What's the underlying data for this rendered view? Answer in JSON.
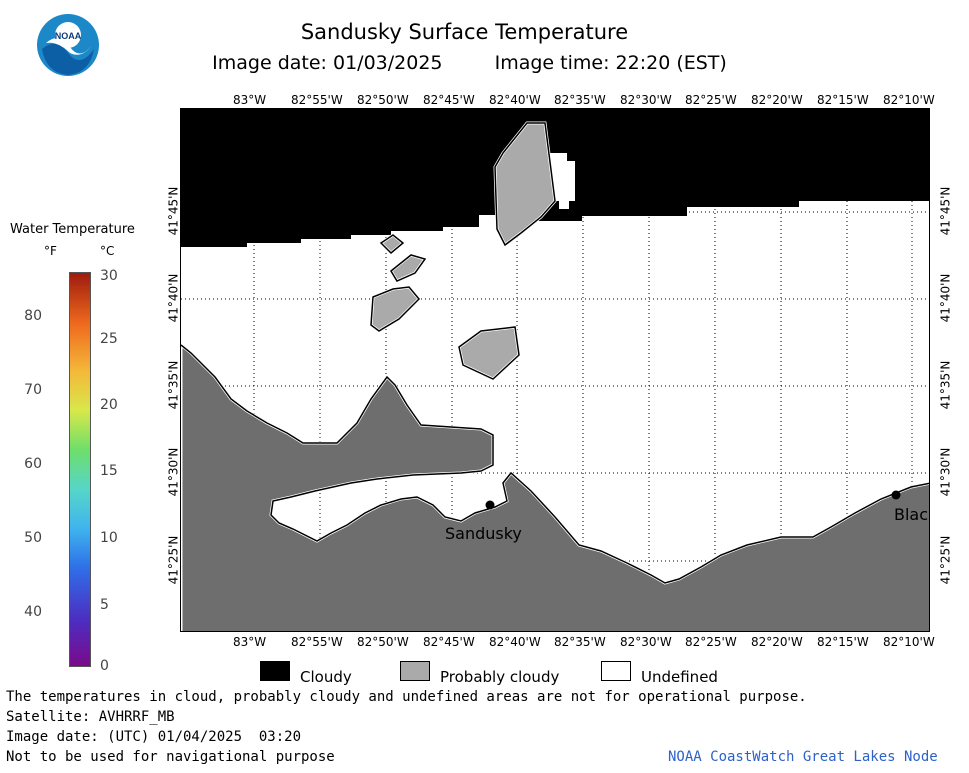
{
  "header": {
    "title": "Sandusky Surface Temperature",
    "subtitle_date": "Image date: 01/03/2025",
    "subtitle_time": "Image time: 22:20 (EST)"
  },
  "logo": {
    "text": "NOAA",
    "colors": {
      "outer": "#1d88c8",
      "inner": "#ffffff",
      "text": "#0a3a7a"
    }
  },
  "longitude_labels": [
    "83°W",
    "82°55'W",
    "82°50'W",
    "82°45'W",
    "82°40'W",
    "82°35'W",
    "82°30'W",
    "82°25'W",
    "82°20'W",
    "82°15'W",
    "82°10'W"
  ],
  "latitude_labels": [
    "41°45'N",
    "41°40'N",
    "41°35'N",
    "41°30'N",
    "41°25'N"
  ],
  "cities": {
    "sandusky": "Sandusky",
    "blac": "Blac"
  },
  "color_scale": {
    "title": "Water Temperature",
    "unit_f": "°F",
    "unit_c": "°C",
    "f_ticks": [
      "80",
      "70",
      "60",
      "50",
      "40"
    ],
    "c_ticks": [
      "30",
      "25",
      "20",
      "15",
      "10",
      "5",
      "0"
    ]
  },
  "legend": {
    "cloudy": "Cloudy",
    "probably_cloudy": "Probably cloudy",
    "undefined": "Undefined"
  },
  "colors": {
    "cloudy": "#000000",
    "probably_cloudy": "#aaaaaa",
    "land": "#6e6e6e",
    "undefined": "#ffffff",
    "node_text": "#2d62c8"
  },
  "footer": {
    "disclaimer": "The temperatures in cloud, probably cloudy and undefined areas are not for operational purpose.",
    "satellite": "Satellite: AVHRRF_MB",
    "image_date_utc": "Image date: (UTC) 01/04/2025  03:20",
    "navigation": "Not to be used for navigational purpose",
    "node": "NOAA CoastWatch Great Lakes Node"
  }
}
